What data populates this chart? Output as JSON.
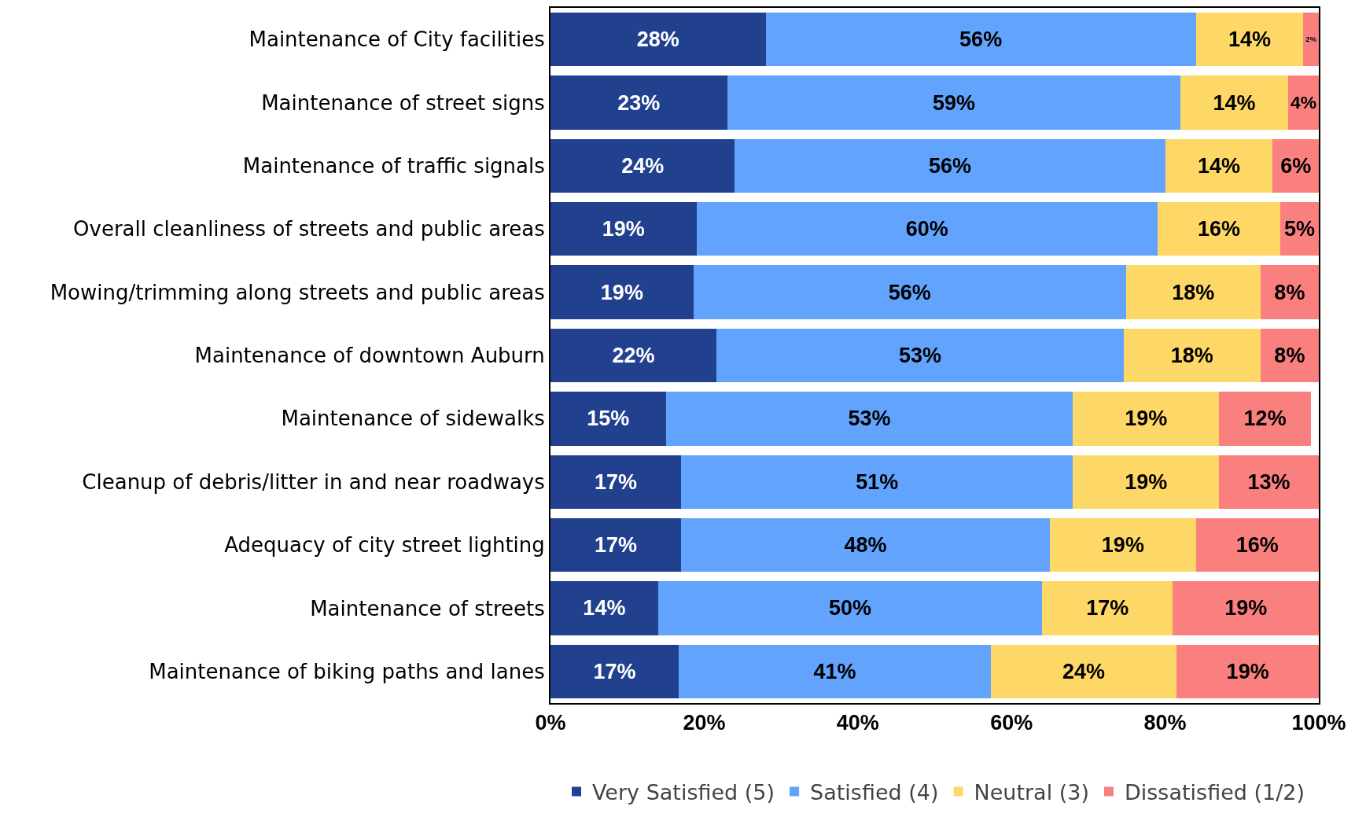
{
  "chart_data": {
    "type": "bar",
    "orientation": "horizontal",
    "stacked": true,
    "categories": [
      "Maintenance of City facilities",
      "Maintenance of street signs",
      "Maintenance of traffic signals",
      "Overall cleanliness of streets and public areas",
      "Mowing/trimming along streets and public areas",
      "Maintenance of downtown Auburn",
      "Maintenance of sidewalks",
      "Cleanup of debris/litter in and near roadways",
      "Adequacy of city street lighting",
      "Maintenance of streets",
      "Maintenance of biking paths and lanes"
    ],
    "series": [
      {
        "name": "Very Satisfied (5)",
        "color": "#21418f",
        "values": [
          28,
          23,
          24,
          19,
          18.6,
          21.6,
          15,
          17,
          17,
          14,
          16.7
        ],
        "value_labels": [
          "28%",
          "23%",
          "24%",
          "19%",
          "19%",
          "22%",
          "15%",
          "17%",
          "17%",
          "14%",
          "17%"
        ]
      },
      {
        "name": "Satisfied (4)",
        "color": "#61a3fd",
        "values": [
          56,
          59,
          56,
          60,
          56.3,
          53,
          53,
          51,
          48,
          50,
          40.6
        ],
        "value_labels": [
          "56%",
          "59%",
          "56%",
          "60%",
          "56%",
          "53%",
          "53%",
          "51%",
          "48%",
          "50%",
          "41%"
        ]
      },
      {
        "name": "Neutral (3)",
        "color": "#fdd866",
        "values": [
          14,
          14,
          14,
          16,
          17.5,
          17.8,
          19,
          19,
          19,
          17,
          24.2
        ],
        "value_labels": [
          "14%",
          "14%",
          "14%",
          "16%",
          "18%",
          "18%",
          "19%",
          "19%",
          "19%",
          "17%",
          "24%"
        ]
      },
      {
        "name": "Dissatisfied (1/2)",
        "color": "#fa8080",
        "values": [
          2,
          4,
          6,
          5,
          7.6,
          7.6,
          12,
          13,
          16,
          19,
          18.5
        ],
        "value_labels": [
          "2%",
          "4%",
          "6%",
          "5%",
          "8%",
          "8%",
          "12%",
          "13%",
          "16%",
          "19%",
          "19%"
        ]
      }
    ],
    "xlim": [
      0,
      100
    ],
    "xticks": [
      {
        "value": 0,
        "label": "0%"
      },
      {
        "value": 20,
        "label": "20%"
      },
      {
        "value": 40,
        "label": "40%"
      },
      {
        "value": 60,
        "label": "60%"
      },
      {
        "value": 80,
        "label": "80%"
      },
      {
        "value": 100,
        "label": "100%"
      }
    ],
    "grid": false,
    "legend": "bottom"
  }
}
